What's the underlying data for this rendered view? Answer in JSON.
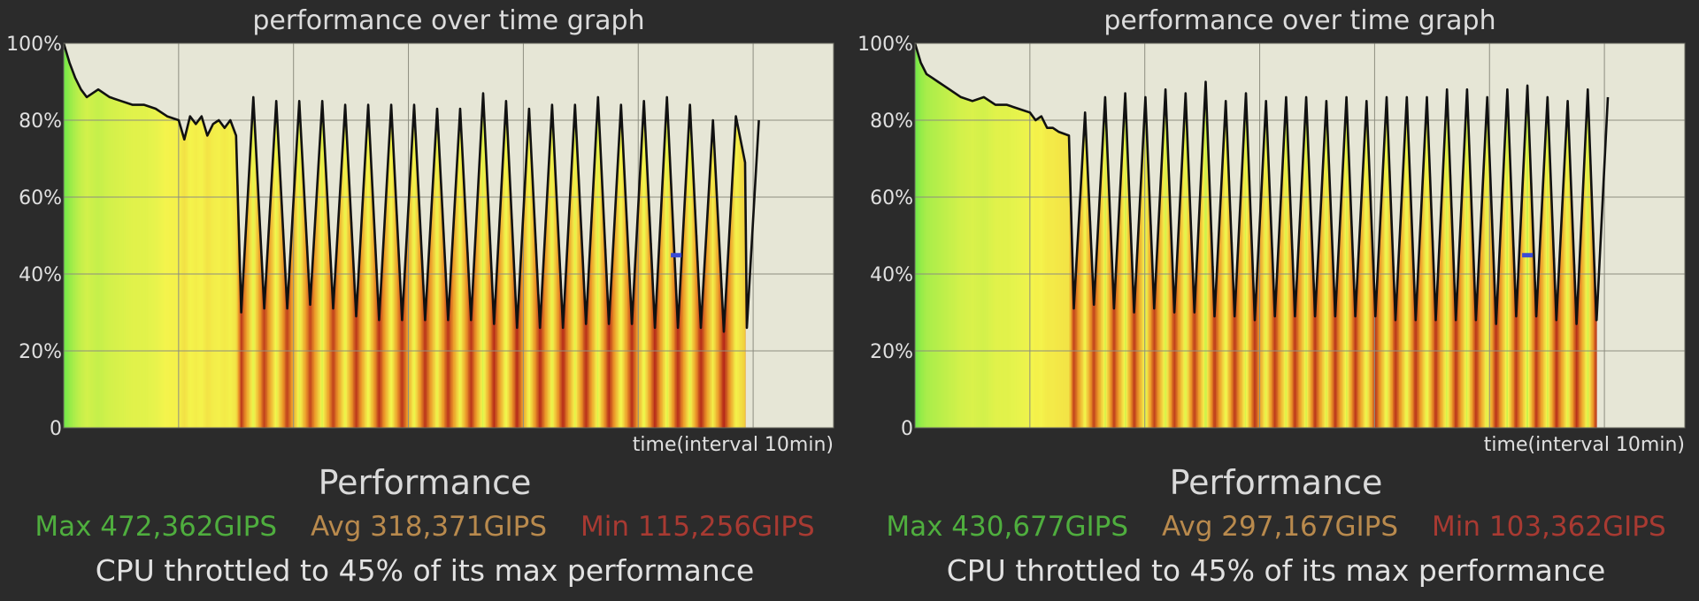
{
  "panels": [
    {
      "title": "performance over time graph",
      "xlabel": "time(interval 10min)",
      "heading": "Performance",
      "max_label": "Max 472,362GIPS",
      "avg_label": "Avg 318,371GIPS",
      "min_label": "Min 115,256GIPS",
      "throttle_text": "CPU throttled to 45% of its max performance"
    },
    {
      "title": "performance over time graph",
      "xlabel": "time(interval 10min)",
      "heading": "Performance",
      "max_label": "Max 430,677GIPS",
      "avg_label": "Avg 297,167GIPS",
      "min_label": "Min 103,362GIPS",
      "throttle_text": "CPU throttled to 45% of its max performance"
    }
  ],
  "colors": {
    "background": "#2b2b2b",
    "plot_bg": "#e6e6d6",
    "line": "#111111",
    "max": "#4fae3e",
    "avg": "#b98a4d",
    "min": "#a83a32",
    "marker": "#3a4bd6"
  },
  "chart_data": [
    {
      "type": "area",
      "title": "performance over time graph",
      "xlabel": "time(interval 10min)",
      "ylabel": "",
      "y_ticks": [
        "0",
        "20%",
        "40%",
        "60%",
        "80%",
        "100%"
      ],
      "ylim": [
        0,
        100
      ],
      "xlim": [
        0,
        67
      ],
      "grid": true,
      "avg_marker_pct": 45,
      "steady_x": [
        0,
        0.5,
        1,
        1.5,
        2,
        2.5,
        3,
        4,
        5,
        6,
        7,
        8,
        9,
        10,
        10.5,
        11,
        11.5,
        12,
        12.5,
        13,
        13.5,
        14,
        14.5,
        15
      ],
      "steady_y": [
        100,
        95,
        91,
        88,
        86,
        87,
        88,
        86,
        85,
        84,
        84,
        83,
        81,
        80,
        75,
        81,
        79,
        81,
        76,
        79,
        80,
        78,
        80,
        76
      ],
      "cycles": {
        "start": 15,
        "period": 2,
        "count": 23,
        "peak_x": 16.5,
        "end_x": 59.3,
        "peaks": [
          86,
          85,
          85,
          85,
          84,
          84,
          84,
          84,
          83,
          83,
          87,
          85,
          83,
          84,
          84,
          86,
          84,
          85,
          86,
          84,
          80,
          81,
          80
        ],
        "troughs": [
          30,
          31,
          31,
          32,
          31,
          29,
          28,
          28,
          28,
          28,
          28,
          27,
          26,
          26,
          26,
          27,
          27,
          27,
          26,
          26,
          26,
          25,
          26
        ],
        "final_peak": 86,
        "final_value": 69
      }
    },
    {
      "type": "area",
      "title": "performance over time graph",
      "xlabel": "time(interval 10min)",
      "ylabel": "",
      "y_ticks": [
        "0",
        "20%",
        "40%",
        "60%",
        "80%",
        "100%"
      ],
      "ylim": [
        0,
        100
      ],
      "xlim": [
        0,
        67
      ],
      "grid": true,
      "avg_marker_pct": 45,
      "steady_x": [
        0,
        0.5,
        1,
        1.5,
        2,
        2.5,
        3,
        4,
        5,
        6,
        7,
        8,
        9,
        10,
        10.5,
        11,
        11.5,
        12,
        12.5,
        13.4
      ],
      "steady_y": [
        100,
        95,
        92,
        91,
        90,
        89,
        88,
        86,
        85,
        86,
        84,
        84,
        83,
        82,
        80,
        81,
        78,
        78,
        77,
        76
      ],
      "cycles": {
        "start": 13.4,
        "period": 1.75,
        "count": 27,
        "peak_x": 14.8,
        "end_x": 59.3,
        "peaks": [
          82,
          86,
          87,
          86,
          88,
          87,
          90,
          85,
          87,
          85,
          86,
          86,
          85,
          86,
          85,
          86,
          86,
          86,
          88,
          88,
          86,
          88,
          89,
          86,
          85,
          88,
          86
        ],
        "troughs": [
          31,
          32,
          31,
          30,
          31,
          30,
          30,
          29,
          29,
          28,
          29,
          29,
          29,
          29,
          29,
          29,
          28,
          28,
          28,
          28,
          28,
          27,
          29,
          29,
          28,
          27,
          28
        ],
        "final_peak": 85,
        "final_value": 28
      }
    }
  ]
}
